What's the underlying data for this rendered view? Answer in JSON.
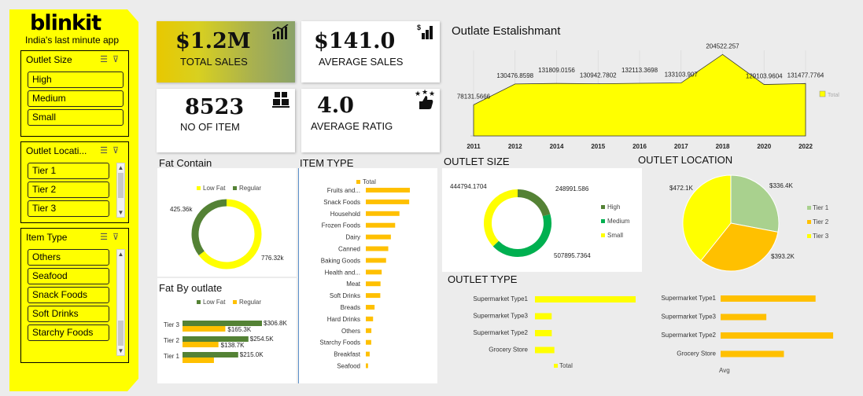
{
  "brand": {
    "logo": "blinkit",
    "tagline": "India's last minute app"
  },
  "slicers": {
    "outlet_size": {
      "title": "Outlet Size",
      "items": [
        "High",
        "Medium",
        "Small"
      ]
    },
    "outlet_location": {
      "title": "Outlet Locati...",
      "items": [
        "Tier 1",
        "Tier 2",
        "Tier 3"
      ]
    },
    "item_type": {
      "title": "Item Type",
      "items": [
        "Others",
        "Seafood",
        "Snack Foods",
        "Soft Drinks",
        "Starchy Foods"
      ]
    }
  },
  "kpis": {
    "total_sales": {
      "value": "$1.2M",
      "label": "TOTAL SALES",
      "icon": "bar-chart-up-icon"
    },
    "average_sales": {
      "value": "$141.0",
      "label": "AVERAGE SALES",
      "icon": "dollar-bars-icon"
    },
    "no_of_item": {
      "value": "8523",
      "label": "NO OF ITEM",
      "icon": "boxes-icon"
    },
    "average_rating": {
      "value": "4.0",
      "label": "AVERAGE RATIG",
      "icon": "thumbs-up-stars-icon"
    }
  },
  "colors": {
    "yellow": "#ffff00",
    "green": "#548235",
    "gold": "#ffc000",
    "bright_green": "#00b050",
    "light_green": "#a9d18e"
  },
  "chart_data": [
    {
      "id": "outlet_establishment",
      "type": "area",
      "title": "Outlate Estalishmant",
      "x": [
        "2011",
        "2012",
        "2014",
        "2015",
        "2016",
        "2017",
        "2018",
        "2020",
        "2022"
      ],
      "series": [
        {
          "name": "Total",
          "values": [
            78131.5666,
            130476.8598,
            131809.0156,
            130942.7802,
            132113.3698,
            133103.907,
            204522.257,
            129103.9604,
            131477.7764
          ]
        }
      ],
      "data_labels": [
        "78131.5666",
        "130476.8598",
        "131809.0156",
        "130942.7802",
        "132113.3698",
        "133103.907",
        "204522.257",
        "129103.9604",
        "131477.7764"
      ],
      "legend": "right"
    },
    {
      "id": "fat_contain",
      "type": "pie",
      "title": "Fat Contain",
      "categories": [
        "Low Fat",
        "Regular"
      ],
      "values": [
        776.32,
        425.36
      ],
      "data_labels": [
        "776.32k",
        "425.36k"
      ],
      "legend": "top"
    },
    {
      "id": "item_type",
      "type": "bar",
      "title": "ITEM TYPE",
      "categories": [
        "Fruits and...",
        "Snack Foods",
        "Household",
        "Frozen Foods",
        "Dairy",
        "Canned",
        "Baking Goods",
        "Health and...",
        "Meat",
        "Soft Drinks",
        "Breads",
        "Hard Drinks",
        "Others",
        "Starchy Foods",
        "Breakfast",
        "Seafood"
      ],
      "series": [
        {
          "name": "Total",
          "values": [
            178.1,
            175.4,
            135.98,
            118.56,
            101.28,
            90.71,
            81.89,
            64.14,
            59.45,
            58.51,
            35.38,
            29.33,
            22.45,
            21.88,
            15.6,
            9.08
          ]
        }
      ],
      "legend": "top"
    },
    {
      "id": "outlet_size",
      "type": "pie",
      "title": "OUTLET SIZE",
      "categories": [
        "High",
        "Medium",
        "Small"
      ],
      "values": [
        248991.586,
        507895.7364,
        444794.1704
      ],
      "data_labels": [
        "248991.586",
        "507895.7364",
        "444794.1704"
      ],
      "legend": "right"
    },
    {
      "id": "outlet_location",
      "type": "pie",
      "title": "OUTLET LOCATION",
      "categories": [
        "Tier 1",
        "Tier 2",
        "Tier 3"
      ],
      "values": [
        336.4,
        393.2,
        472.1
      ],
      "data_labels": [
        "$336.4K",
        "$393.2K",
        "$472.1K"
      ],
      "legend": "right"
    },
    {
      "id": "fat_by_outlet",
      "type": "bar",
      "title": "Fat By outlate",
      "categories": [
        "Tier 3",
        "Tier 2",
        "Tier 1"
      ],
      "series": [
        {
          "name": "Low Fat",
          "values": [
            306.8,
            254.5,
            215.0
          ],
          "labels": [
            "$306.8K",
            "$254.5K",
            "$215.0K"
          ]
        },
        {
          "name": "Regular",
          "values": [
            165.3,
            138.7,
            121.3
          ],
          "labels": [
            "$165.3K",
            "$138.7K",
            ""
          ]
        }
      ],
      "legend": "top"
    },
    {
      "id": "outlet_type_total",
      "type": "bar",
      "title": "OUTLET TYPE",
      "categories": [
        "Supermarket Type1",
        "Supermarket Type3",
        "Supermarket Type2",
        "Grocery Store"
      ],
      "series": [
        {
          "name": "Total",
          "values": [
            787.5,
            130.7,
            131.5,
            151.9
          ]
        }
      ],
      "legend": "bottom"
    },
    {
      "id": "outlet_type_avg",
      "type": "bar",
      "categories": [
        "Supermarket Type1",
        "Supermarket Type3",
        "Supermarket Type2",
        "Grocery Store"
      ],
      "series": [
        {
          "name": "Avg",
          "values": [
            141.2,
            139.8,
            141.7,
            140.3
          ]
        }
      ],
      "legend": "bottom"
    }
  ]
}
